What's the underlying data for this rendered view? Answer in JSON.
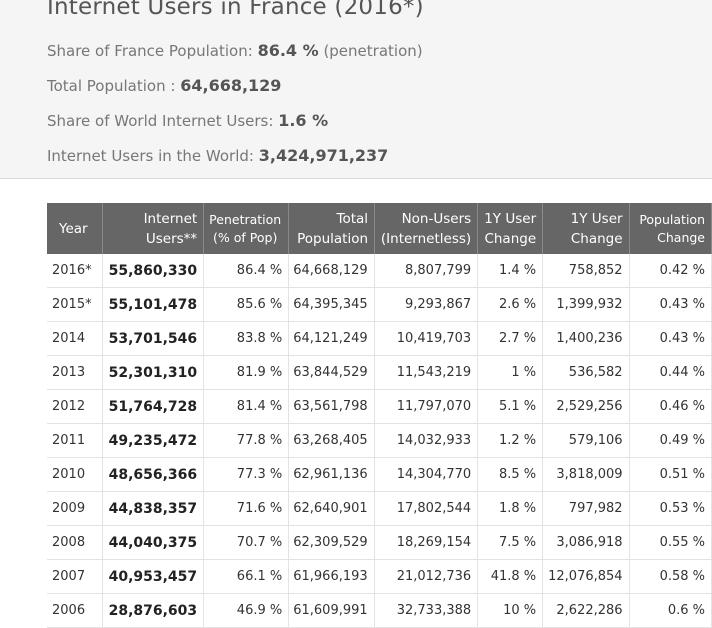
{
  "summary": {
    "title": "Internet Users in France (2016*)",
    "share_label": "Share of France Population:",
    "share_value": "86.4 %",
    "share_note": "(penetration)",
    "total_pop_label": "Total Population :",
    "total_pop_value": "64,668,129",
    "world_share_label": "Share of World Internet Users:",
    "world_share_value": "1.6 %",
    "world_users_label": "Internet Users in the World:",
    "world_users_value": "3,424,971,237"
  },
  "table": {
    "headers": {
      "year": "Year",
      "users_1": "Internet",
      "users_2": "Users**",
      "pen_1": "Penetration",
      "pen_2": "(% of Pop)",
      "pop_1": "Total",
      "pop_2": "Population",
      "non_1": "Non-Users",
      "non_2": "(Internetless)",
      "chg_1": "1Y User",
      "chg_2": "Change",
      "uchg_1": "1Y User",
      "uchg_2": "Change",
      "pchg_1": "Population",
      "pchg_2": "Change"
    },
    "rows": [
      [
        "2016*",
        "55,860,330",
        "86.4 %",
        "64,668,129",
        "8,807,799",
        "1.4 %",
        "758,852",
        "0.42 %"
      ],
      [
        "2015*",
        "55,101,478",
        "85.6 %",
        "64,395,345",
        "9,293,867",
        "2.6 %",
        "1,399,932",
        "0.43 %"
      ],
      [
        "2014",
        "53,701,546",
        "83.8 %",
        "64,121,249",
        "10,419,703",
        "2.7 %",
        "1,400,236",
        "0.43 %"
      ],
      [
        "2013",
        "52,301,310",
        "81.9 %",
        "63,844,529",
        "11,543,219",
        "1 %",
        "536,582",
        "0.44 %"
      ],
      [
        "2012",
        "51,764,728",
        "81.4 %",
        "63,561,798",
        "11,797,070",
        "5.1 %",
        "2,529,256",
        "0.46 %"
      ],
      [
        "2011",
        "49,235,472",
        "77.8 %",
        "63,268,405",
        "14,032,933",
        "1.2 %",
        "579,106",
        "0.49 %"
      ],
      [
        "2010",
        "48,656,366",
        "77.3 %",
        "62,961,136",
        "14,304,770",
        "8.5 %",
        "3,818,009",
        "0.51 %"
      ],
      [
        "2009",
        "44,838,357",
        "71.6 %",
        "62,640,901",
        "17,802,544",
        "1.8 %",
        "797,982",
        "0.53 %"
      ],
      [
        "2008",
        "44,040,375",
        "70.7 %",
        "62,309,529",
        "18,269,154",
        "7.5 %",
        "3,086,918",
        "0.55 %"
      ],
      [
        "2007",
        "40,953,457",
        "66.1 %",
        "61,966,193",
        "21,012,736",
        "41.8 %",
        "12,076,854",
        "0.58 %"
      ],
      [
        "2006",
        "28,876,603",
        "46.9 %",
        "61,609,991",
        "32,733,388",
        "10 %",
        "2,622,286",
        "0.6 %"
      ]
    ]
  }
}
